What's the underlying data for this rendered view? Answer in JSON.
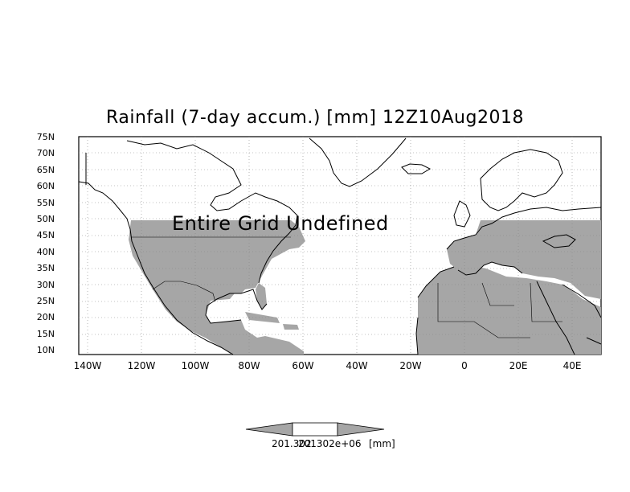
{
  "title": "Rainfall (7-day accum.) [mm] 12Z10Aug2018",
  "overlay_text": "Entire Grid Undefined",
  "lat_labels": [
    "75N",
    "70N",
    "65N",
    "60N",
    "55N",
    "50N",
    "45N",
    "40N",
    "35N",
    "30N",
    "25N",
    "20N",
    "15N",
    "10N"
  ],
  "lon_labels": [
    "140W",
    "120W",
    "100W",
    "80W",
    "60W",
    "40W",
    "20W",
    "0",
    "20E",
    "40E"
  ],
  "colorbar": {
    "label_left": "201.302",
    "label_mid": "201302e+06",
    "unit": "[mm]"
  },
  "colors": {
    "land_mask": "#a6a6a6",
    "coast": "#000000",
    "background": "#ffffff"
  }
}
